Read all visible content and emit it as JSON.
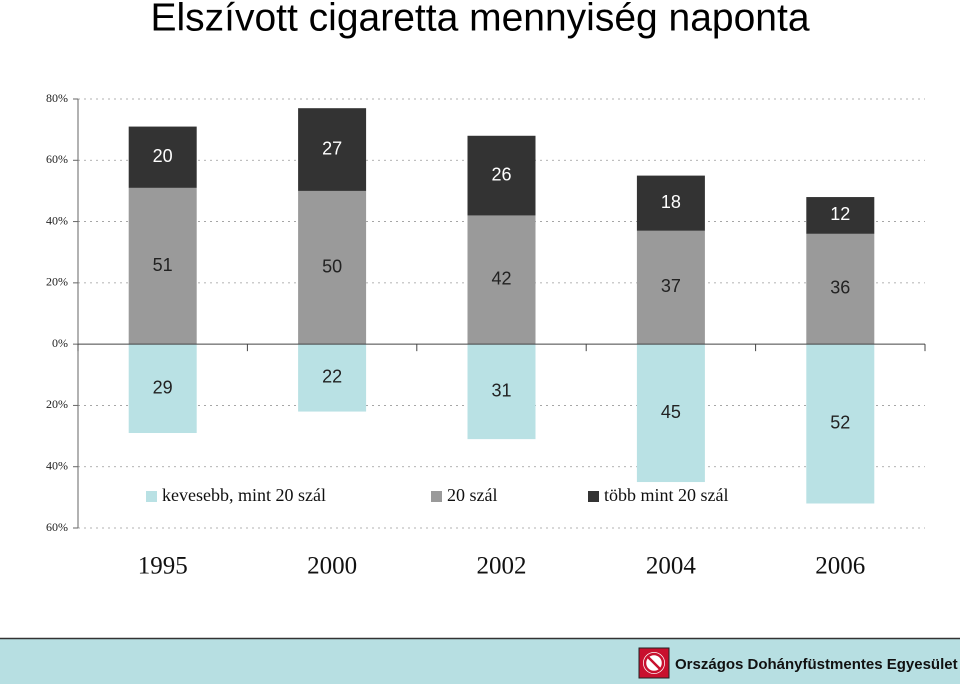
{
  "chart_data": {
    "type": "bar",
    "title": "Elszívott cigaretta mennyiség naponta",
    "categories": [
      "1995",
      "2000",
      "2002",
      "2004",
      "2006"
    ],
    "series": [
      {
        "name": "kevesebb, mint 20 szál",
        "color": "#b9e1e4",
        "values": [
          -29,
          -22,
          -31,
          -45,
          -52
        ],
        "value_labels": [
          "29",
          "22",
          "31",
          "45",
          "52"
        ]
      },
      {
        "name": "20 szál",
        "color": "#9a9a9a",
        "values": [
          51,
          50,
          42,
          37,
          36
        ]
      },
      {
        "name": "több mint 20 szál",
        "color": "#333333",
        "values": [
          20,
          27,
          26,
          18,
          12
        ]
      }
    ],
    "ylim": [
      -60,
      80
    ],
    "yticks": [
      {
        "value": -60,
        "label": "60%"
      },
      {
        "value": -40,
        "label": "40%"
      },
      {
        "value": -20,
        "label": "20%"
      },
      {
        "value": 0,
        "label": "0%"
      },
      {
        "value": 20,
        "label": "20%"
      },
      {
        "value": 40,
        "label": "40%"
      },
      {
        "value": 60,
        "label": "60%"
      },
      {
        "value": 80,
        "label": "80%"
      }
    ],
    "grid": true,
    "footer": "Országos Dohányfüstmentes Egyesület"
  }
}
